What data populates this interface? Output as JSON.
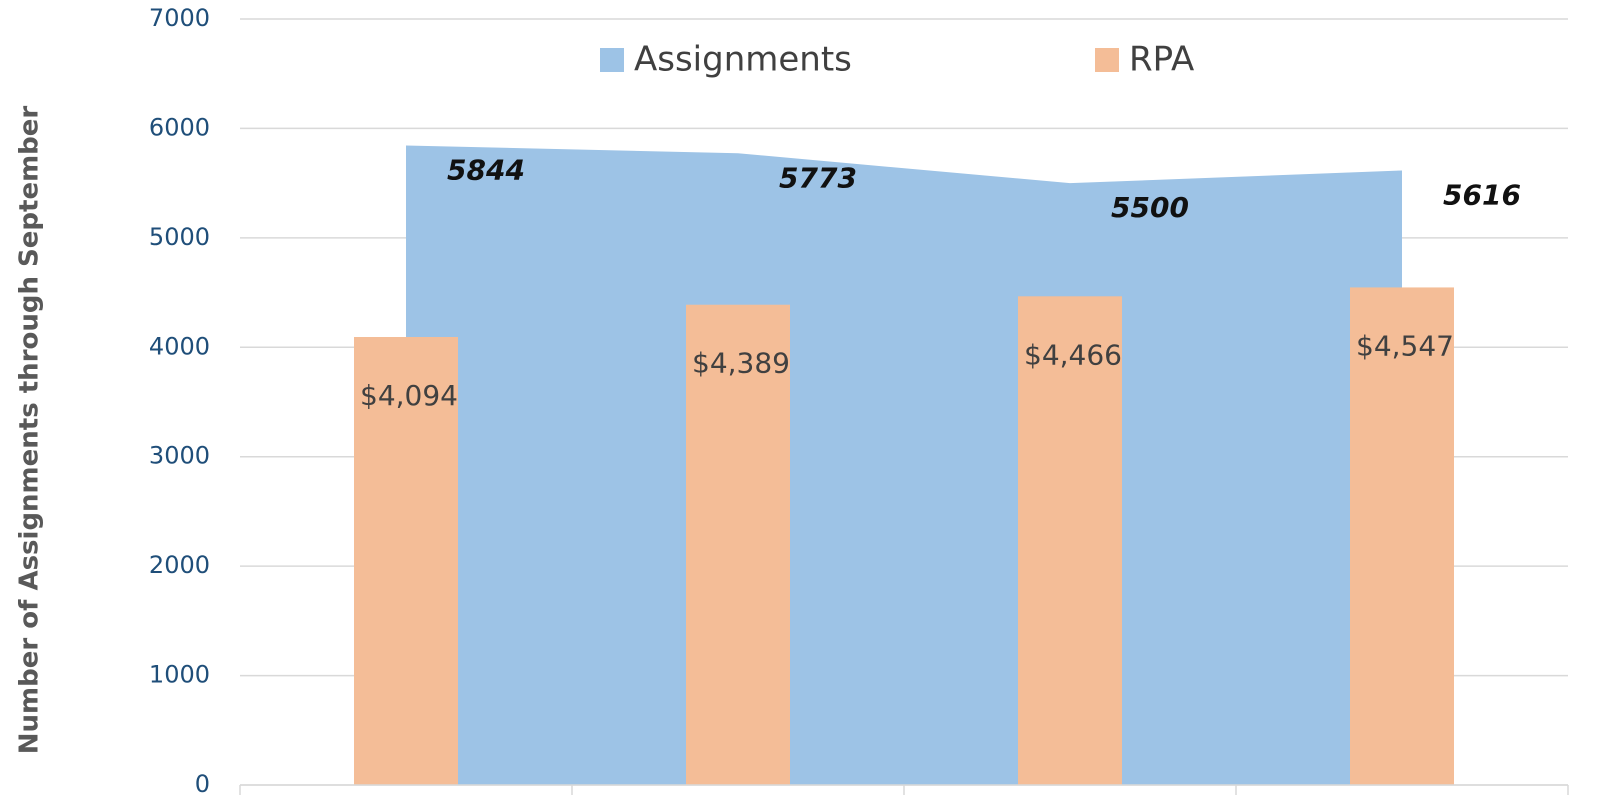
{
  "chart_data": {
    "type": "combo",
    "y_label": "Number of Assignments through September",
    "categories": [
      null,
      null,
      null,
      null
    ],
    "series": [
      {
        "name": "Assignments",
        "type": "area",
        "color": "#9dc3e6",
        "values": [
          5844,
          5773,
          5500,
          5616
        ]
      },
      {
        "name": "RPA",
        "type": "bar",
        "color": "#f4bd97",
        "values": [
          4094,
          4389,
          4466,
          4547
        ],
        "value_labels": [
          "$4,094",
          "$4,389",
          "$4,466",
          "$4,547"
        ]
      }
    ],
    "ylim": [
      0,
      7000
    ],
    "yticks": [
      0,
      1000,
      2000,
      3000,
      4000,
      5000,
      6000,
      7000
    ],
    "grid": true,
    "legend": "top"
  }
}
